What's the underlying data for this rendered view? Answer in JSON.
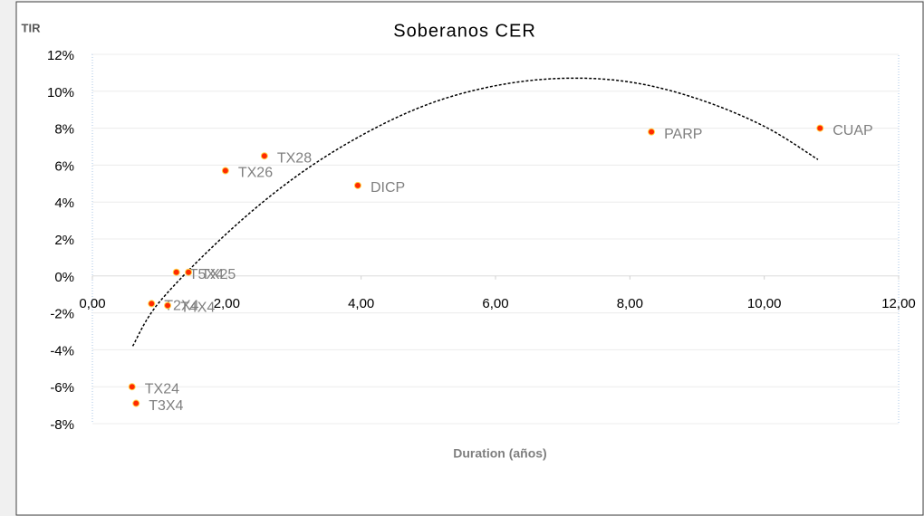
{
  "chart_data": {
    "type": "scatter",
    "title": "Soberanos CER",
    "y_axis_label": "TIR",
    "x_axis_label": "Duration (años)",
    "color": "#ff2a00",
    "grid": true,
    "points": {
      "labels": [
        "TX24",
        "T3X4",
        "T2X4",
        "T4X4",
        "T5X4",
        "TX25",
        "TX26",
        "TX28",
        "DICP",
        "PARP",
        "CUAP"
      ],
      "x": [
        0.59,
        0.65,
        0.88,
        1.12,
        1.25,
        1.43,
        1.98,
        2.56,
        3.95,
        8.32,
        10.83
      ],
      "values": [
        -6.0,
        -6.9,
        -1.5,
        -1.6,
        0.2,
        0.2,
        5.7,
        6.5,
        4.9,
        7.8,
        8.0
      ]
    },
    "trendline": {
      "x": [
        0.6,
        1,
        2,
        3,
        4,
        5,
        6,
        7,
        8,
        9,
        10,
        10.8
      ],
      "values": [
        -3.8,
        -1.4,
        2.3,
        5.3,
        7.6,
        9.3,
        10.3,
        10.7,
        10.5,
        9.6,
        8.1,
        6.3
      ]
    },
    "xlim": [
      0,
      12
    ],
    "xticks": [
      {
        "value": 0,
        "label": "0,00"
      },
      {
        "value": 2,
        "label": "2,00"
      },
      {
        "value": 4,
        "label": "4,00"
      },
      {
        "value": 6,
        "label": "6,00"
      },
      {
        "value": 8,
        "label": "8,00"
      },
      {
        "value": 10,
        "label": "10,00"
      },
      {
        "value": 12,
        "label": "12,00"
      }
    ],
    "ylim": [
      -8,
      12
    ],
    "yticks": [
      {
        "value": -8,
        "label": "-8%"
      },
      {
        "value": -6,
        "label": "-6%"
      },
      {
        "value": -4,
        "label": "-4%"
      },
      {
        "value": -2,
        "label": "-2%"
      },
      {
        "value": 0,
        "label": "0%"
      },
      {
        "value": 2,
        "label": "2%"
      },
      {
        "value": 4,
        "label": "4%"
      },
      {
        "value": 6,
        "label": "6%"
      },
      {
        "value": 8,
        "label": "8%"
      },
      {
        "value": 10,
        "label": "10%"
      },
      {
        "value": 12,
        "label": "12%"
      }
    ]
  }
}
